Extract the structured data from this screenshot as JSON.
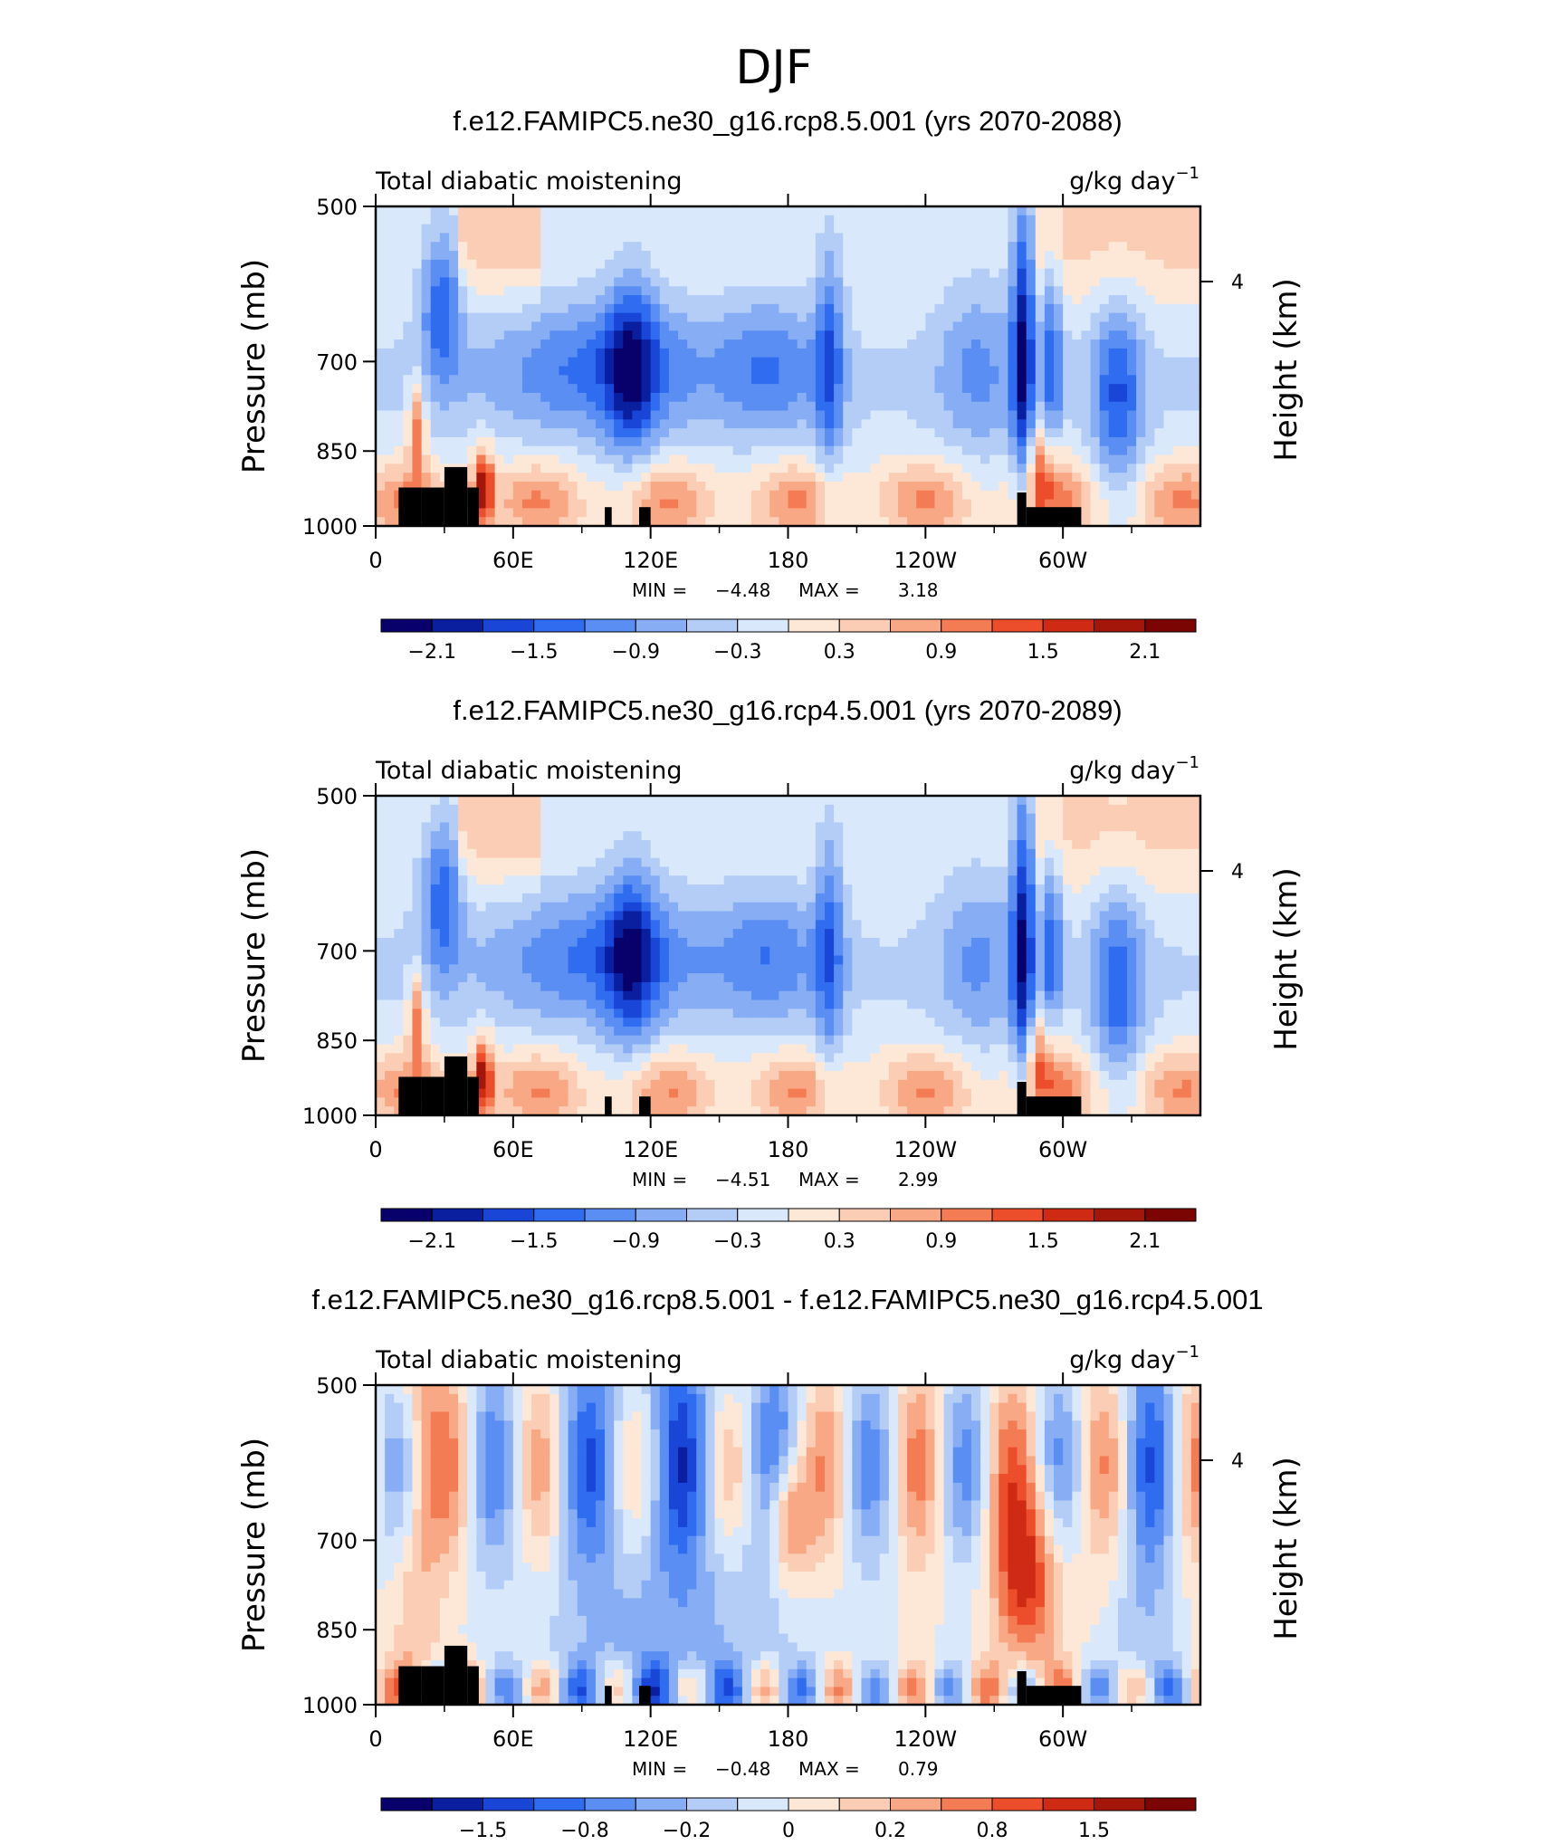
{
  "figure": {
    "season_title": "DJF"
  },
  "chart_data": [
    {
      "type": "heatmap",
      "title": "f.e12.FAMIPC5.ne30_g16.rcp8.5.001 (yrs 2070-2088)",
      "variable": "Total diabatic moistening",
      "units_base": "g/kg day",
      "units_exp": "−1",
      "ylabel": "Pressure (mb)",
      "y2label": "Height (km)",
      "y_ticks": [
        "500",
        "700",
        "850",
        "1000"
      ],
      "y2_ticks": [
        "4"
      ],
      "x_ticks": [
        "0",
        "60E",
        "120E",
        "180",
        "120W",
        "60W"
      ],
      "min_label": "MIN =",
      "min_value": "−4.48",
      "max_label": "MAX =",
      "max_value": "3.18",
      "colorbar_labels": [
        "−2.1",
        "−1.5",
        "−0.9",
        "−0.3",
        "0.3",
        "0.9",
        "1.5",
        "2.1"
      ]
    },
    {
      "type": "heatmap",
      "title": "f.e12.FAMIPC5.ne30_g16.rcp4.5.001 (yrs 2070-2089)",
      "variable": "Total diabatic moistening",
      "units_base": "g/kg day",
      "units_exp": "−1",
      "ylabel": "Pressure (mb)",
      "y2label": "Height (km)",
      "y_ticks": [
        "500",
        "700",
        "850",
        "1000"
      ],
      "y2_ticks": [
        "4"
      ],
      "x_ticks": [
        "0",
        "60E",
        "120E",
        "180",
        "120W",
        "60W"
      ],
      "min_label": "MIN =",
      "min_value": "−4.51",
      "max_label": "MAX =",
      "max_value": "2.99",
      "colorbar_labels": [
        "−2.1",
        "−1.5",
        "−0.9",
        "−0.3",
        "0.3",
        "0.9",
        "1.5",
        "2.1"
      ]
    },
    {
      "type": "heatmap",
      "title": "f.e12.FAMIPC5.ne30_g16.rcp8.5.001 - f.e12.FAMIPC5.ne30_g16.rcp4.5.001",
      "variable": "Total diabatic moistening",
      "units_base": "g/kg day",
      "units_exp": "−1",
      "ylabel": "Pressure (mb)",
      "y2label": "Height (km)",
      "y_ticks": [
        "500",
        "700",
        "850",
        "1000"
      ],
      "y2_ticks": [
        "4"
      ],
      "x_ticks": [
        "0",
        "60E",
        "120E",
        "180",
        "120W",
        "60W"
      ],
      "min_label": "MIN =",
      "min_value": "−0.48",
      "max_label": "MAX =",
      "max_value": "0.79",
      "colorbar_labels": [
        "−1.5",
        "−0.8",
        "−0.2",
        "0",
        "0.2",
        "0.8",
        "1.5"
      ]
    }
  ],
  "colors": {
    "scale": [
      "#08006b",
      "#0a1ea0",
      "#1a46d8",
      "#2f6cf0",
      "#5a8ef2",
      "#87adf4",
      "#b4cdf7",
      "#d9e8fb",
      "#fde8d8",
      "#fbcdb4",
      "#f8a884",
      "#f47c55",
      "#ec4d2a",
      "#cf2a14",
      "#a5160a",
      "#7a0503"
    ],
    "land": "#000000"
  }
}
